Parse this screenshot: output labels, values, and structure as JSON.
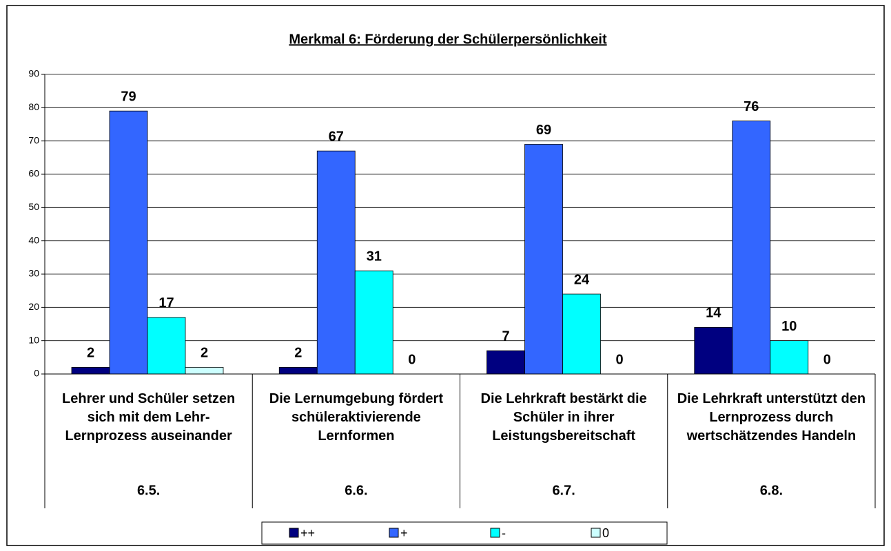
{
  "chart_data": {
    "type": "bar",
    "title": "Merkmal 6: Förderung der Schülerpersönlichkeit",
    "categories": [
      "Lehrer und Schüler setzen sich mit dem Lehr-Lernprozess auseinander",
      "Die Lernumgebung fördert schüleraktivierende Lernformen",
      "Die Lehrkraft bestärkt die Schüler in ihrer Leistungsbereitschaft",
      "Die Lehrkraft unterstützt den Lernprozess durch wertschätzendes Handeln"
    ],
    "groups": [
      "6.5.",
      "6.6.",
      "6.7.",
      "6.8."
    ],
    "series": [
      {
        "name": "++",
        "color": "#000080",
        "values": [
          2,
          2,
          7,
          14
        ]
      },
      {
        "name": "+",
        "color": "#3366ff",
        "values": [
          79,
          67,
          69,
          76
        ]
      },
      {
        "name": "-",
        "color": "#00ffff",
        "values": [
          17,
          31,
          24,
          10
        ]
      },
      {
        "name": "0",
        "color": "#ccffff",
        "values": [
          2,
          0,
          0,
          0
        ]
      }
    ],
    "ylim": [
      0,
      90
    ],
    "yticks": [
      0,
      10,
      20,
      30,
      40,
      50,
      60,
      70,
      80,
      90
    ],
    "grid": true,
    "legend": "bottom"
  }
}
